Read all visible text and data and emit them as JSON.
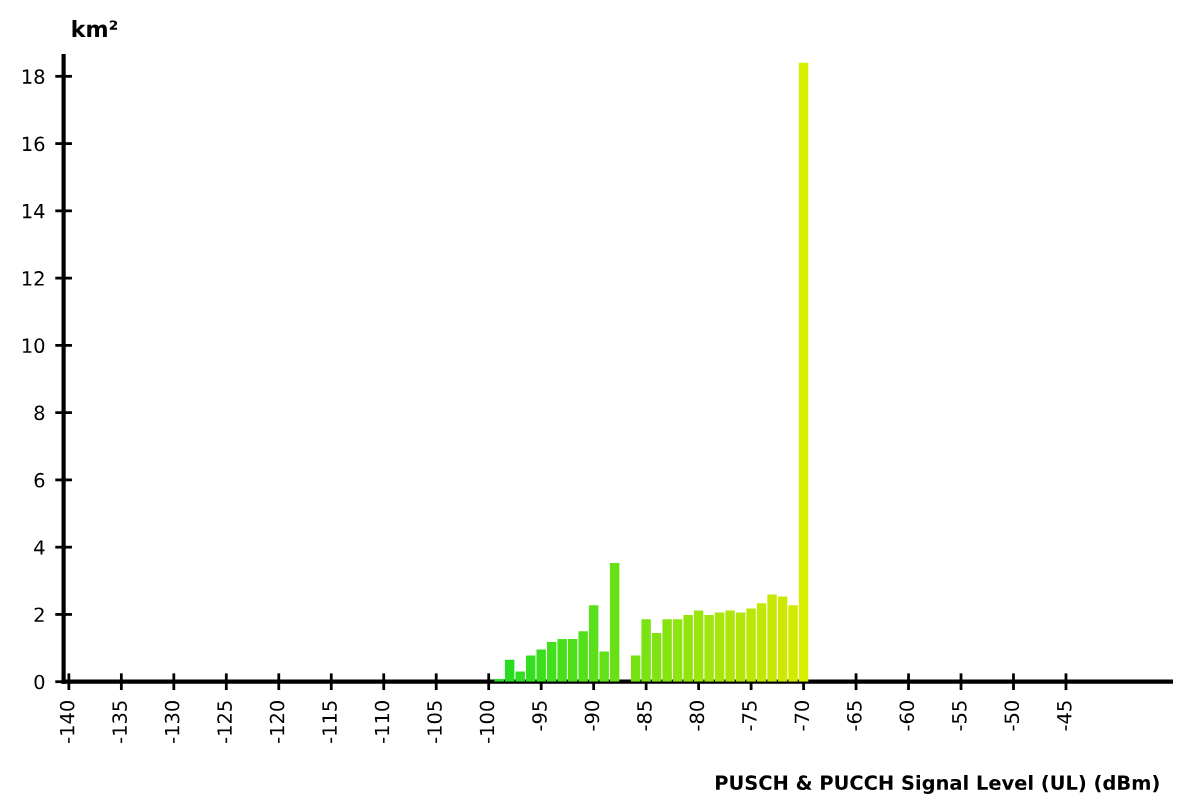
{
  "chart_data": {
    "type": "bar",
    "xlabel": "PUSCH & PUCCH Signal Level (UL) (dBm)",
    "ylabel": "km²",
    "x": [
      -99,
      -98,
      -97,
      -96,
      -95,
      -94,
      -93,
      -92,
      -91,
      -90,
      -89,
      -88,
      -87,
      -86,
      -85,
      -84,
      -83,
      -82,
      -81,
      -80,
      -79,
      -78,
      -77,
      -76,
      -75,
      -74,
      -73,
      -72,
      -71,
      -70
    ],
    "values": [
      0.08,
      0.65,
      0.3,
      0.78,
      0.96,
      1.18,
      1.27,
      1.27,
      1.5,
      2.27,
      0.9,
      3.53,
      null,
      0.78,
      1.86,
      1.45,
      1.86,
      1.86,
      1.98,
      2.12,
      1.98,
      2.06,
      2.12,
      2.06,
      2.18,
      2.33,
      2.59,
      2.53,
      2.27,
      18.4
    ],
    "colors": [
      "#22dd22",
      "#28dd21",
      "#2fde20",
      "#35de1e",
      "#3ade1d",
      "#41df1c",
      "#48df1b",
      "#4edf1a",
      "#54e019",
      "#5ae018",
      "#61e116",
      "#67e115",
      "#6ee214",
      "#74e213",
      "#7ae312",
      "#80e311",
      "#87e30f",
      "#8de40e",
      "#93e40d",
      "#9ae50c",
      "#a0e50b",
      "#a6e60a",
      "#ade608",
      "#b3e607",
      "#b9e706",
      "#c0e705",
      "#c6e804",
      "#cce803",
      "#d2e901",
      "#d8f000"
    ],
    "xlim": [
      -140.5,
      -35
    ],
    "xticks": [
      -140,
      -135,
      -130,
      -125,
      -120,
      -115,
      -110,
      -105,
      -100,
      -95,
      -90,
      -85,
      -80,
      -75,
      -70,
      -65,
      -60,
      -55,
      -50,
      -45
    ],
    "ylim": [
      0,
      18.6
    ],
    "yticks": [
      0,
      2,
      4,
      6,
      8,
      10,
      12,
      14,
      16,
      18
    ],
    "grid": false,
    "legend": false
  }
}
